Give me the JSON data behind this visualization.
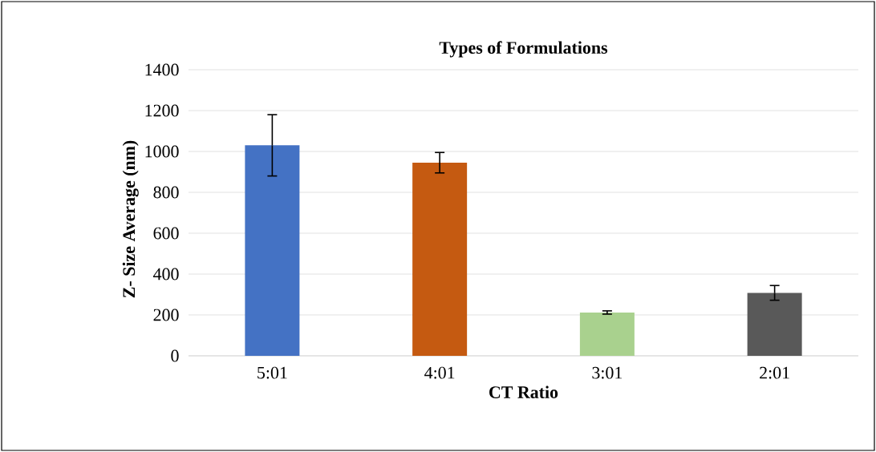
{
  "chart_data": {
    "type": "bar",
    "title": "Types of Formulations",
    "xlabel": "CT Ratio",
    "ylabel": "Z- Size Average (nm)",
    "categories": [
      "5:01",
      "4:01",
      "3:01",
      "2:01"
    ],
    "values": [
      1030,
      945,
      212,
      308
    ],
    "colors": [
      "#4472c4",
      "#c55a11",
      "#a9d18e",
      "#595959"
    ],
    "errors": [
      150,
      50,
      8,
      36
    ],
    "ylim": [
      0,
      1400
    ],
    "yticks": [
      0,
      200,
      400,
      600,
      800,
      1000,
      1200,
      1400
    ],
    "grid": "y"
  }
}
